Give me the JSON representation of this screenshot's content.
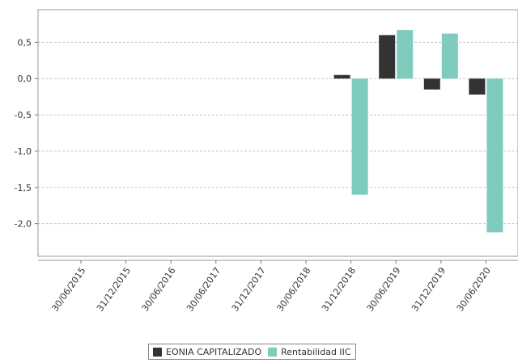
{
  "chart_data": {
    "type": "bar",
    "categories": [
      "30/06/2015",
      "31/12/2015",
      "30/06/2016",
      "30/06/2017",
      "31/12/2017",
      "30/06/2018",
      "31/12/2018",
      "30/06/2019",
      "31/12/2019",
      "30/06/2020"
    ],
    "series": [
      {
        "name": "EONIA CAPITALIZADO",
        "color": "#333333",
        "values": [
          null,
          null,
          null,
          null,
          null,
          null,
          0.05,
          0.6,
          -0.15,
          -0.22
        ]
      },
      {
        "name": "Rentabilidad IIC",
        "color": "#7fcbbe",
        "values": [
          null,
          null,
          null,
          null,
          null,
          null,
          -1.6,
          0.67,
          0.62,
          -2.12
        ]
      }
    ],
    "yticks": [
      "0,5",
      "0,0",
      "-0,5",
      "-1,0",
      "-1,5",
      "-2,0"
    ],
    "ytick_values": [
      0.5,
      0.0,
      -0.5,
      -1.0,
      -1.5,
      -2.0
    ],
    "ylim": [
      -2.45,
      0.95
    ],
    "grid": true,
    "legend": "bottom"
  }
}
